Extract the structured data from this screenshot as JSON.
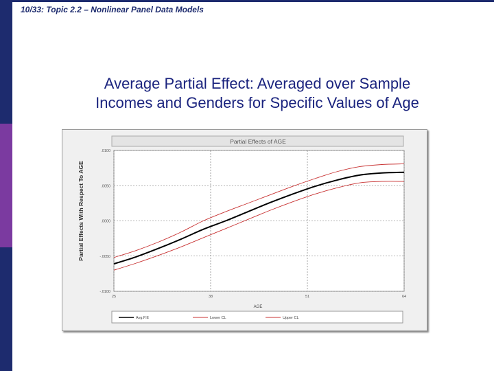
{
  "slide": {
    "header": "10/33: Topic 2.2 – Nonlinear Panel Data Models",
    "title_line1": "Average Partial Effect: Averaged over Sample",
    "title_line2": "Incomes and Genders for Specific Values of Age"
  },
  "colors": {
    "left_bar": [
      "#1d2b6e",
      "#7b3aa0",
      "#1d2b6e"
    ],
    "title": "#1a237e",
    "avg_line": "#000000",
    "ci_line": "#c83232"
  },
  "chart_data": {
    "type": "line",
    "title": "Partial Effects of AGE",
    "xlabel": "AGE",
    "ylabel": "Partial Effects With Respect To AGE",
    "xlim": [
      25,
      64
    ],
    "ylim": [
      -0.01,
      0.01
    ],
    "x_ticks": [
      25,
      38,
      51,
      64
    ],
    "x_tick_labels": [
      "25",
      "38",
      "51",
      "64"
    ],
    "y_ticks": [
      0.01,
      0.005,
      0.0,
      -0.005,
      -0.01
    ],
    "y_tick_labels": [
      ".0100",
      ".0050",
      ".0000",
      "-.0050",
      "-.0100"
    ],
    "grid": true,
    "x": [
      25,
      28,
      31,
      34,
      37,
      40,
      43,
      46,
      49,
      52,
      55,
      58,
      61,
      64
    ],
    "series": [
      {
        "name": "Avg.P.E",
        "style": "solid",
        "values": [
          -0.0061,
          -0.0051,
          -0.0039,
          -0.0026,
          -0.0012,
          0.0,
          0.0013,
          0.0026,
          0.0038,
          0.0049,
          0.0058,
          0.0065,
          0.0068,
          0.0069
        ]
      },
      {
        "name": "Lower CL",
        "style": "dashed",
        "values": [
          -0.007,
          -0.006,
          -0.0049,
          -0.0037,
          -0.0024,
          -0.0011,
          0.0002,
          0.0015,
          0.0027,
          0.0038,
          0.0047,
          0.0054,
          0.0056,
          0.0056
        ]
      },
      {
        "name": "Upper CL",
        "style": "dashed",
        "values": [
          -0.0052,
          -0.0042,
          -0.003,
          -0.0016,
          0.0,
          0.0013,
          0.0025,
          0.0037,
          0.0049,
          0.006,
          0.007,
          0.0077,
          0.008,
          0.0081
        ]
      }
    ]
  }
}
